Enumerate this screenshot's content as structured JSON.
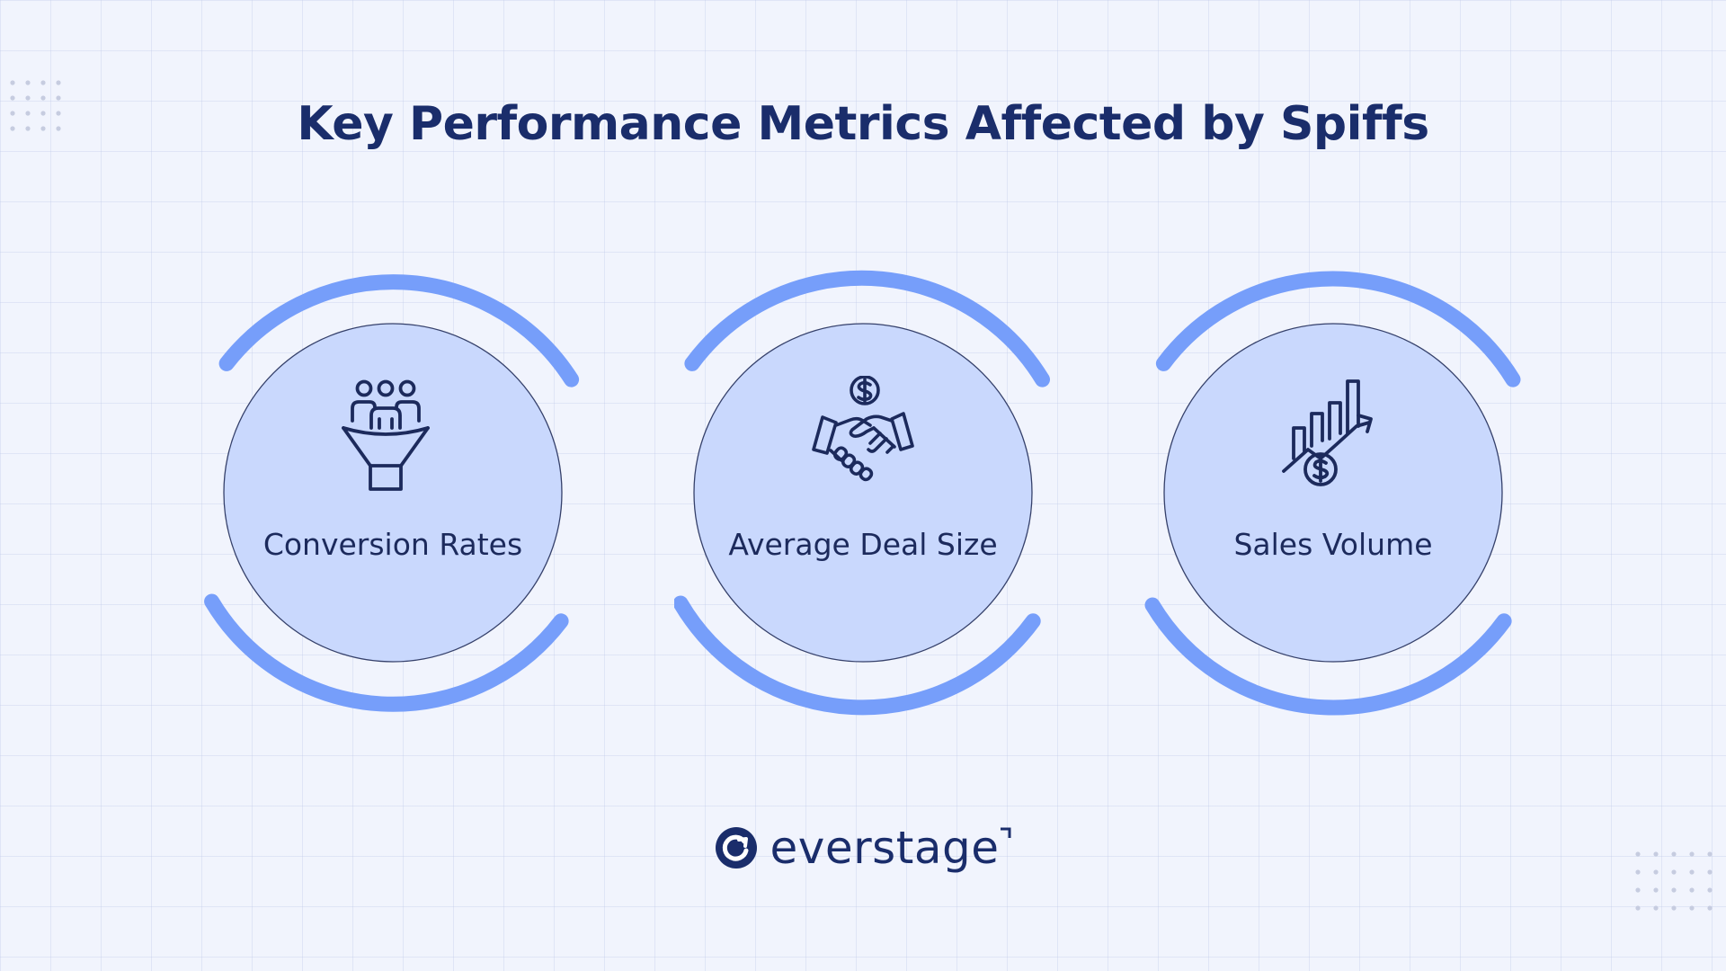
{
  "title": "Key Performance Metrics Affected by Spiffs",
  "metrics": [
    {
      "label": "Conversion Rates",
      "icon": "sales-funnel-people-icon"
    },
    {
      "label": "Average Deal Size",
      "icon": "handshake-dollar-icon"
    },
    {
      "label": "Sales Volume",
      "icon": "bar-chart-growth-dollar-icon"
    }
  ],
  "logo": {
    "text": "everstage",
    "icon": "everstage-logo-icon"
  },
  "colors": {
    "background": "#f1f4fd",
    "circle_fill": "#c9d8fd",
    "arc": "#769efa",
    "title": "#1a2d6b",
    "icon_stroke": "#1c2a5c"
  }
}
